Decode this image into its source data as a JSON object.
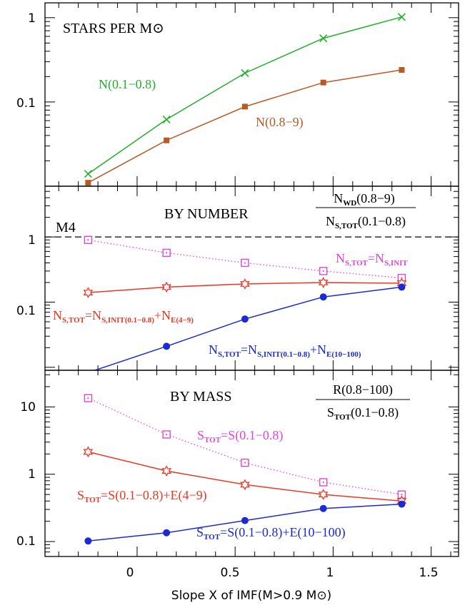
{
  "chart_data": [
    {
      "type": "line",
      "title": "STARS PER M⊙",
      "y_scale": "log",
      "ylim": [
        0.01,
        1.5
      ],
      "y_ticks": [
        "0.1",
        "1"
      ],
      "xlim": [
        -0.47,
        1.64
      ],
      "series": [
        {
          "name": "N(0.1−0.8)",
          "color": "#21b02d",
          "marker": "x",
          "line": "solid",
          "x": [
            -0.25,
            0.15,
            0.55,
            0.95,
            1.35
          ],
          "y": [
            0.014,
            0.062,
            0.22,
            0.57,
            1.02
          ]
        },
        {
          "name": "N(0.8−9)",
          "color": "#b85a23",
          "marker": "filled-square",
          "line": "solid",
          "x": [
            -0.25,
            0.15,
            0.55,
            0.95,
            1.35
          ],
          "y": [
            0.011,
            0.035,
            0.088,
            0.17,
            0.24
          ]
        }
      ]
    },
    {
      "type": "line",
      "title": "BY NUMBER",
      "ratio_label": {
        "numerator": "N_WD(0.8−9)",
        "denominator": "N_S,TOT(0.1−0.8)"
      },
      "y_scale": "log",
      "ylim": [
        0.009,
        6.0
      ],
      "y_ticks": [
        "0.1",
        "1"
      ],
      "xlim": [
        -0.47,
        1.64
      ],
      "reference_line": {
        "label": "M4",
        "y": 1.0,
        "style": "dashed"
      },
      "series": [
        {
          "name": "N_S,TOT=N_S,INIT",
          "color": "#e044d8",
          "marker": "open-square",
          "line": "dotted",
          "x": [
            -0.25,
            0.15,
            0.55,
            0.95,
            1.35
          ],
          "y": [
            0.9,
            0.57,
            0.4,
            0.3,
            0.235
          ]
        },
        {
          "name": "N_S,TOT=N_S,INIT(0.1−0.8)+N_E(4−9)",
          "color": "#ec3726",
          "marker": "star",
          "line": "solid",
          "x": [
            -0.25,
            0.15,
            0.55,
            0.95,
            1.35
          ],
          "y": [
            0.14,
            0.17,
            0.19,
            0.2,
            0.195
          ]
        },
        {
          "name": "N_S,TOT=N_S,INIT(0.1−0.8)+N_E(10−100)",
          "color": "#1a2bd4",
          "marker": "filled-circle",
          "line": "solid",
          "x": [
            -0.25,
            0.15,
            0.55,
            0.95,
            1.35
          ],
          "y": [
            0.0083,
            0.021,
            0.055,
            0.12,
            0.17
          ]
        }
      ]
    },
    {
      "type": "line",
      "title": "BY MASS",
      "ratio_label": {
        "numerator": "R(0.8−100)",
        "denominator": "S_TOT(0.1−0.8)"
      },
      "y_scale": "log",
      "ylim": [
        0.06,
        35.0
      ],
      "y_ticks": [
        "0.1",
        "1",
        "10"
      ],
      "xlim": [
        -0.47,
        1.64
      ],
      "xlabel": "Slope X of IMF(M>0.9 M⊙)",
      "x_ticks": [
        "0",
        "0.5",
        "1",
        "1.5"
      ],
      "series": [
        {
          "name": "S_TOT=S(0.1−0.8)",
          "color": "#e044d8",
          "marker": "open-square",
          "line": "dotted",
          "x": [
            -0.25,
            0.15,
            0.55,
            0.95,
            1.35
          ],
          "y": [
            13.5,
            3.9,
            1.48,
            0.76,
            0.5
          ]
        },
        {
          "name": "S_TOT=S(0.1−0.8)+E(4−9)",
          "color": "#ec3726",
          "marker": "star",
          "line": "solid",
          "x": [
            -0.25,
            0.15,
            0.55,
            0.95,
            1.35
          ],
          "y": [
            2.15,
            1.12,
            0.7,
            0.5,
            0.4
          ]
        },
        {
          "name": "S_TOT=S(0.1−0.8)+E(10−100)",
          "color": "#1a2bd4",
          "marker": "filled-circle",
          "line": "solid",
          "x": [
            -0.25,
            0.15,
            0.55,
            0.95,
            1.35
          ],
          "y": [
            0.102,
            0.135,
            0.205,
            0.31,
            0.36
          ]
        }
      ]
    }
  ]
}
